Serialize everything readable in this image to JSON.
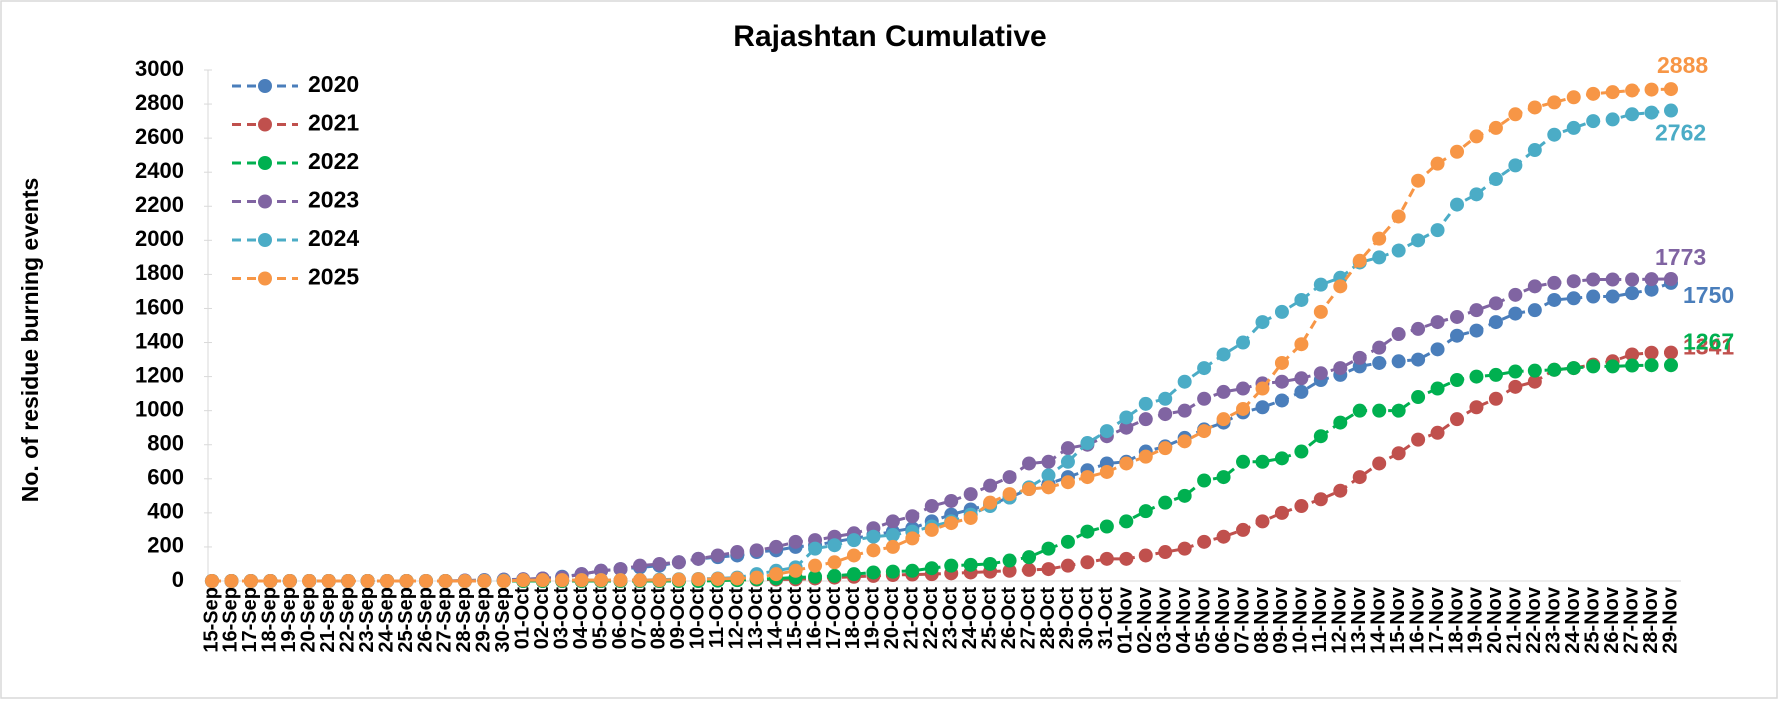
{
  "chart_data": {
    "type": "line",
    "title": "Rajashtan Cumulative",
    "y_label": "No. of residue burning events",
    "categories": [
      "15-Sep",
      "16-Sep",
      "17-Sep",
      "18-Sep",
      "19-Sep",
      "20-Sep",
      "21-Sep",
      "22-Sep",
      "23-Sep",
      "24-Sep",
      "25-Sep",
      "26-Sep",
      "27-Sep",
      "28-Sep",
      "29-Sep",
      "30-Sep",
      "01-Oct",
      "02-Oct",
      "03-Oct",
      "04-Oct",
      "05-Oct",
      "06-Oct",
      "07-Oct",
      "08-Oct",
      "09-Oct",
      "10-Oct",
      "11-Oct",
      "12-Oct",
      "13-Oct",
      "14-Oct",
      "15-Oct",
      "16-Oct",
      "17-Oct",
      "18-Oct",
      "19-Oct",
      "20-Oct",
      "21-Oct",
      "22-Oct",
      "23-Oct",
      "24-Oct",
      "25-Oct",
      "26-Oct",
      "27-Oct",
      "28-Oct",
      "29-Oct",
      "30-Oct",
      "31-Oct",
      "01-Nov",
      "02-Nov",
      "03-Nov",
      "04-Nov",
      "05-Nov",
      "06-Nov",
      "07-Nov",
      "08-Nov",
      "09-Nov",
      "10-Nov",
      "11-Nov",
      "12-Nov",
      "13-Nov",
      "14-Nov",
      "15-Nov",
      "16-Nov",
      "17-Nov",
      "18-Nov",
      "19-Nov",
      "20-Nov",
      "21-Nov",
      "22-Nov",
      "23-Nov",
      "24-Nov",
      "25-Nov",
      "26-Nov",
      "27-Nov",
      "28-Nov",
      "29-Nov"
    ],
    "series": [
      {
        "name": "2020",
        "color": "#4a7ebb",
        "values": [
          0,
          0,
          0,
          0,
          0,
          0,
          0,
          0,
          0,
          0,
          0,
          0,
          0,
          2,
          5,
          8,
          10,
          15,
          25,
          40,
          60,
          70,
          80,
          90,
          110,
          130,
          140,
          150,
          170,
          180,
          200,
          210,
          230,
          250,
          270,
          290,
          310,
          350,
          390,
          420,
          450,
          490,
          540,
          570,
          610,
          650,
          690,
          700,
          760,
          790,
          840,
          890,
          930,
          990,
          1020,
          1060,
          1110,
          1180,
          1210,
          1260,
          1280,
          1290,
          1300,
          1360,
          1440,
          1470,
          1520,
          1570,
          1590,
          1650,
          1660,
          1670,
          1670,
          1690,
          1710,
          1750
        ]
      },
      {
        "name": "2021",
        "color": "#c0504d",
        "values": [
          0,
          0,
          0,
          0,
          0,
          0,
          0,
          0,
          0,
          0,
          0,
          0,
          0,
          0,
          0,
          0,
          0,
          0,
          0,
          0,
          0,
          0,
          0,
          0,
          2,
          3,
          5,
          6,
          8,
          9,
          10,
          15,
          20,
          25,
          30,
          35,
          38,
          40,
          45,
          50,
          55,
          60,
          65,
          70,
          90,
          110,
          130,
          130,
          150,
          170,
          190,
          230,
          260,
          300,
          350,
          400,
          440,
          480,
          530,
          610,
          690,
          750,
          830,
          870,
          950,
          1020,
          1070,
          1140,
          1170,
          1240,
          1250,
          1270,
          1290,
          1330,
          1340,
          1341
        ]
      },
      {
        "name": "2022",
        "color": "#00b050",
        "values": [
          0,
          0,
          0,
          0,
          0,
          0,
          0,
          0,
          0,
          0,
          0,
          0,
          0,
          0,
          0,
          0,
          0,
          0,
          0,
          0,
          0,
          0,
          0,
          0,
          0,
          0,
          2,
          5,
          10,
          15,
          20,
          25,
          30,
          40,
          50,
          55,
          60,
          75,
          90,
          95,
          100,
          120,
          140,
          190,
          230,
          290,
          320,
          350,
          410,
          460,
          500,
          590,
          610,
          700,
          700,
          720,
          760,
          850,
          930,
          1000,
          1000,
          1000,
          1080,
          1130,
          1180,
          1200,
          1210,
          1230,
          1235,
          1240,
          1250,
          1260,
          1260,
          1265,
          1267,
          1267
        ]
      },
      {
        "name": "2023",
        "color": "#8064a2",
        "values": [
          0,
          0,
          0,
          0,
          0,
          0,
          0,
          0,
          0,
          0,
          0,
          0,
          0,
          3,
          5,
          8,
          10,
          15,
          20,
          40,
          60,
          70,
          90,
          100,
          110,
          130,
          150,
          170,
          180,
          200,
          230,
          240,
          260,
          280,
          310,
          350,
          380,
          440,
          470,
          510,
          560,
          610,
          690,
          700,
          780,
          800,
          850,
          900,
          950,
          980,
          1000,
          1070,
          1110,
          1130,
          1160,
          1170,
          1190,
          1220,
          1250,
          1310,
          1370,
          1450,
          1480,
          1520,
          1550,
          1590,
          1630,
          1680,
          1730,
          1750,
          1760,
          1770,
          1770,
          1770,
          1772,
          1773
        ]
      },
      {
        "name": "2024",
        "color": "#4bacc6",
        "values": [
          0,
          0,
          0,
          0,
          0,
          0,
          0,
          0,
          0,
          0,
          0,
          0,
          0,
          0,
          2,
          3,
          5,
          5,
          5,
          5,
          5,
          5,
          5,
          8,
          10,
          12,
          15,
          20,
          40,
          60,
          80,
          190,
          210,
          240,
          260,
          270,
          290,
          320,
          350,
          390,
          440,
          490,
          550,
          620,
          700,
          810,
          880,
          960,
          1040,
          1070,
          1170,
          1250,
          1330,
          1400,
          1520,
          1580,
          1650,
          1740,
          1780,
          1870,
          1900,
          1940,
          2000,
          2060,
          2210,
          2270,
          2360,
          2440,
          2530,
          2620,
          2660,
          2700,
          2710,
          2740,
          2750,
          2762
        ]
      },
      {
        "name": "2025",
        "color": "#f79646",
        "values": [
          0,
          0,
          0,
          0,
          0,
          0,
          0,
          0,
          0,
          0,
          0,
          0,
          0,
          0,
          0,
          0,
          5,
          5,
          5,
          5,
          5,
          5,
          5,
          5,
          8,
          10,
          12,
          15,
          20,
          40,
          60,
          90,
          110,
          150,
          180,
          200,
          250,
          300,
          340,
          370,
          460,
          510,
          540,
          550,
          580,
          610,
          640,
          690,
          730,
          780,
          820,
          880,
          950,
          1010,
          1130,
          1280,
          1390,
          1580,
          1730,
          1880,
          2010,
          2140,
          2350,
          2450,
          2520,
          2610,
          2660,
          2740,
          2780,
          2810,
          2840,
          2860,
          2870,
          2880,
          2885,
          2888
        ]
      }
    ],
    "ylim": [
      0,
      3000
    ],
    "yticks": [
      0,
      200,
      400,
      600,
      800,
      1000,
      1200,
      1400,
      1600,
      1800,
      2000,
      2200,
      2400,
      2600,
      2800,
      3000
    ],
    "grid": false,
    "legend": "upper left"
  }
}
